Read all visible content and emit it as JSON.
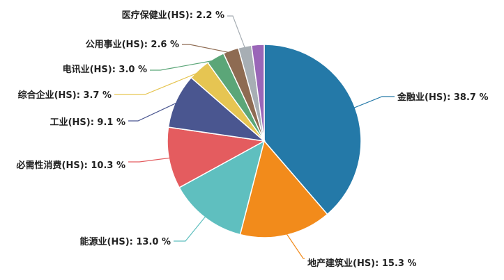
{
  "chart_data": {
    "type": "pie",
    "title": "",
    "slices": [
      {
        "label": "金融业(HS): 38.7 %",
        "value": 38.7,
        "color": "#2479a8"
      },
      {
        "label": "地产建筑业(HS): 15.3 %",
        "value": 15.3,
        "color": "#f28b1b"
      },
      {
        "label": "能源业(HS): 13.0 %",
        "value": 13.0,
        "color": "#5fbfbf"
      },
      {
        "label": "必需性消费(HS): 10.3 %",
        "value": 10.3,
        "color": "#e45c5f"
      },
      {
        "label": "工业(HS): 9.1 %",
        "value": 9.1,
        "color": "#4a5690"
      },
      {
        "label": "综合企业(HS): 3.7 %",
        "value": 3.7,
        "color": "#e6c552"
      },
      {
        "label": "电讯业(HS): 3.0 %",
        "value": 3.0,
        "color": "#5ba678"
      },
      {
        "label": "公用事业(HS): 2.6 %",
        "value": 2.6,
        "color": "#8e6b52"
      },
      {
        "label": "医疗保健业(HS): 2.2 %",
        "value": 2.2,
        "color": "#a7aeb4"
      },
      {
        "label": "",
        "value": 2.1,
        "color": "#9a66b8"
      }
    ]
  }
}
